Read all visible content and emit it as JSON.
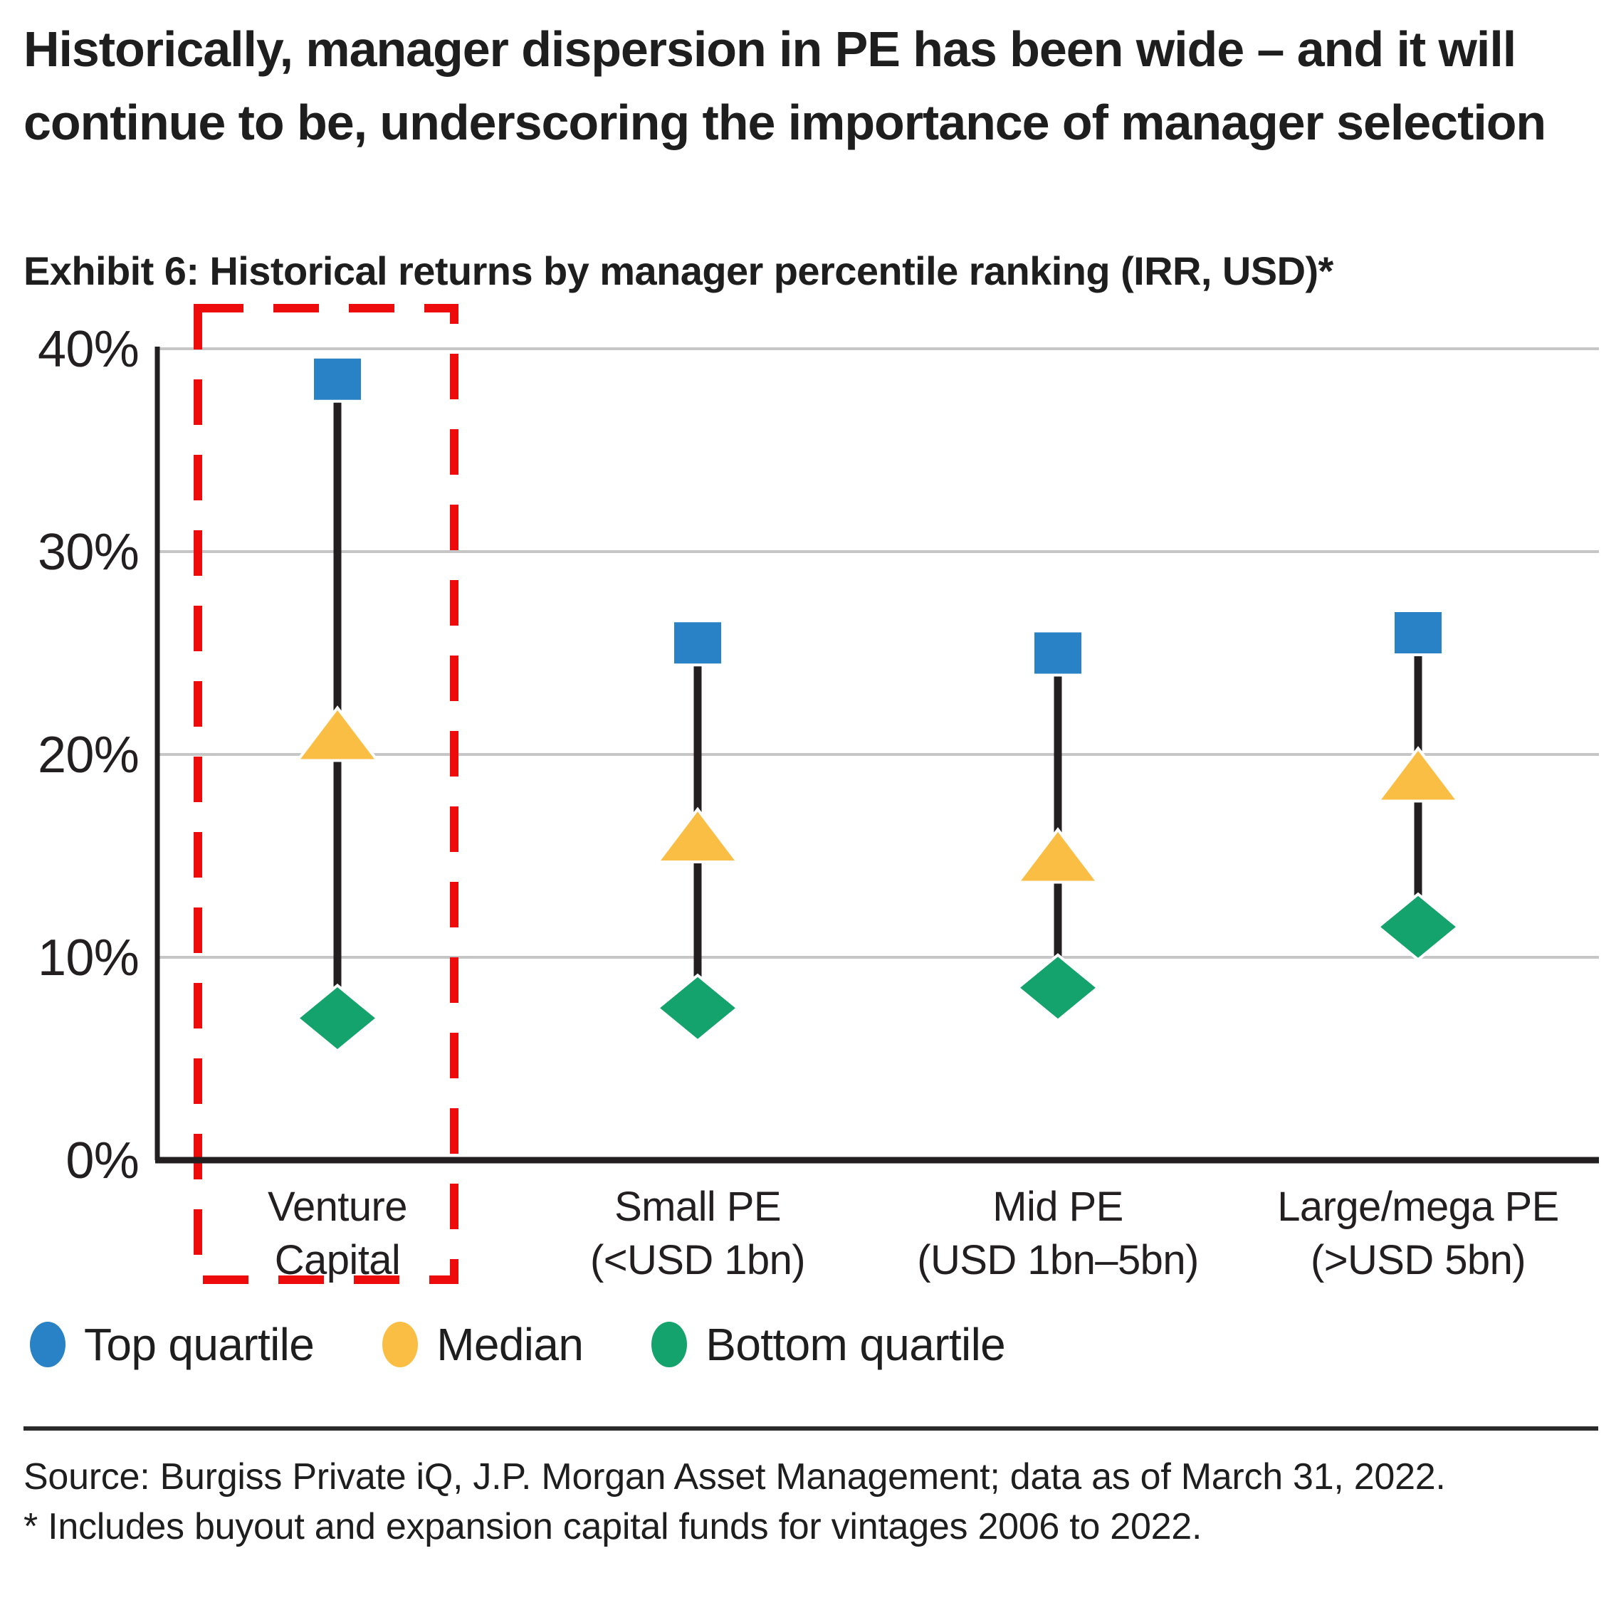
{
  "title": "Historically, manager dispersion in PE has been wide – and it will continue to be, underscoring the importance of manager selection",
  "subtitle": "Exhibit 6: Historical returns by manager percentile ranking (IRR, USD)*",
  "chart_data": {
    "type": "scatter",
    "title": "Exhibit 6: Historical returns by manager percentile ranking (IRR, USD)*",
    "categories": [
      "Venture Capital",
      "Small PE (<USD 1bn)",
      "Mid PE (USD 1bn–5bn)",
      "Large/mega PE (>USD 5bn)"
    ],
    "category_label_lines": [
      [
        "Venture",
        "Capital"
      ],
      [
        "Small PE",
        "(<USD 1bn)"
      ],
      [
        "Mid PE",
        "(USD 1bn–5bn)"
      ],
      [
        "Large/mega PE",
        "(>USD 5bn)"
      ]
    ],
    "series": [
      {
        "name": "Top quartile",
        "marker": "square",
        "color": "#2982C5",
        "values": [
          38.5,
          25.5,
          25.0,
          26.0
        ]
      },
      {
        "name": "Median",
        "marker": "triangle",
        "color": "#FBBE44",
        "values": [
          21.0,
          16.0,
          15.0,
          19.0
        ]
      },
      {
        "name": "Bottom quartile",
        "marker": "diamond",
        "color": "#14A36C",
        "values": [
          7.0,
          7.5,
          8.5,
          11.5
        ]
      }
    ],
    "y_ticks": [
      0,
      10,
      20,
      30,
      40
    ],
    "y_tick_labels": [
      "0%",
      "10%",
      "20%",
      "30%",
      "40%"
    ],
    "ylim": [
      0,
      40
    ],
    "grid": "horizontal",
    "legend_position": "bottom",
    "annotation": {
      "type": "dashed-box",
      "color": "#ED0B0B",
      "highlighted_category": "Venture Capital",
      "category_index": 0
    }
  },
  "legend": {
    "items": [
      {
        "label": "Top quartile",
        "color": "#2982C5"
      },
      {
        "label": "Median",
        "color": "#FBBE44"
      },
      {
        "label": "Bottom quartile",
        "color": "#14A36C"
      }
    ]
  },
  "footer": {
    "source_line": "Source: Burgiss Private iQ, J.P. Morgan Asset Management; data as of March 31, 2022.",
    "footnote_line": "* Includes buyout and expansion capital funds for vintages 2006 to 2022."
  },
  "colors": {
    "top_quartile_blue": "#2982C5",
    "median_yellow": "#FBBE44",
    "bottom_quartile_green": "#14A36C",
    "highlight_red": "#ED0B0B",
    "gridline_gray": "#C6C6C6",
    "ink": "#231F20"
  }
}
